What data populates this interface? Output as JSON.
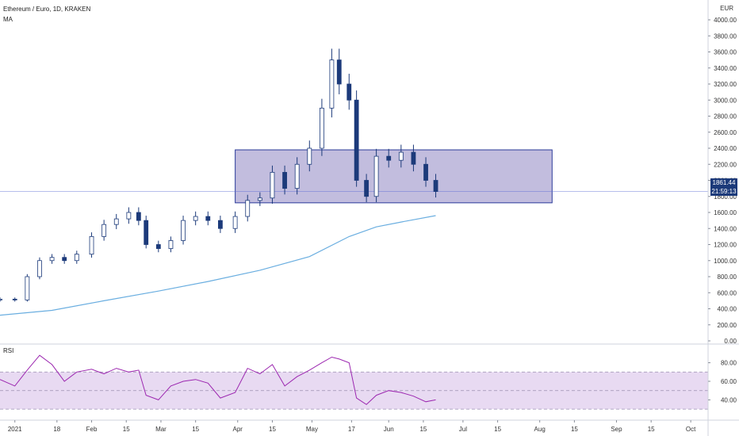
{
  "header": {
    "symbol": "Ethereum / Euro, 1D, KRAKEN",
    "indicator": "MA",
    "rsi_label": "RSI",
    "currency": "EUR"
  },
  "price_box": {
    "price": "1861.44",
    "countdown": "21:59:13"
  },
  "colors": {
    "up_candle": "#ffffff",
    "down_candle": "#1c3a7a",
    "candle_outline": "#1c3a7a",
    "ma_line": "#6aaee0",
    "zone_fill": "#b7b1d8",
    "zone_border": "#2b3b9a",
    "rsi_line": "#9c27b0",
    "rsi_band": "#e6d6f1",
    "price_tag": "#1c3a7a"
  },
  "chart_data": [
    {
      "type": "line",
      "title": "Ethereum / Euro, 1D, KRAKEN",
      "xlabel": "",
      "ylabel": "EUR",
      "x_ticks": [
        "2021",
        "18",
        "Feb",
        "15",
        "Mar",
        "15",
        "Apr",
        "15",
        "May",
        "17",
        "Jun",
        "15",
        "Jul",
        "15",
        "Aug",
        "15",
        "Sep",
        "15",
        "Oct"
      ],
      "y_ticks": [
        "0.00",
        "200.00",
        "400.00",
        "600.00",
        "800.00",
        "1000.00",
        "1200.00",
        "1400.00",
        "1600.00",
        "1800.00",
        "2000.00",
        "2200.00",
        "2400.00",
        "2600.00",
        "2800.00",
        "3000.00",
        "3200.00",
        "3400.00",
        "3600.00",
        "3800.00",
        "4000.00"
      ],
      "ylim": [
        0,
        4000
      ],
      "series": [
        {
          "name": "",
          "kind": "close",
          "x": [
            "2020-12-26",
            "2021-01-01",
            "2021-01-06",
            "2021-01-11",
            "2021-01-16",
            "2021-01-21",
            "2021-01-26",
            "2021-02-01",
            "2021-02-06",
            "2021-02-11",
            "2021-02-16",
            "2021-02-20",
            "2021-02-23",
            "2021-02-28",
            "2021-03-05",
            "2021-03-10",
            "2021-03-15",
            "2021-03-20",
            "2021-03-25",
            "2021-03-31",
            "2021-04-05",
            "2021-04-10",
            "2021-04-15",
            "2021-04-20",
            "2021-04-25",
            "2021-04-30",
            "2021-05-05",
            "2021-05-09",
            "2021-05-12",
            "2021-05-16",
            "2021-05-19",
            "2021-05-23",
            "2021-05-27",
            "2021-06-01",
            "2021-06-06",
            "2021-06-11",
            "2021-06-16",
            "2021-06-20"
          ],
          "y": [
            520,
            510,
            800,
            1000,
            1040,
            1000,
            1080,
            1300,
            1450,
            1520,
            1600,
            1500,
            1200,
            1150,
            1250,
            1500,
            1550,
            1500,
            1400,
            1550,
            1750,
            1780,
            2100,
            1900,
            2200,
            2400,
            2900,
            3500,
            3200,
            3000,
            2000,
            1800,
            2300,
            2250,
            2350,
            2200,
            2000,
            1861
          ]
        },
        {
          "name": "",
          "kind": "moving_average",
          "x": [
            "2020-12-26",
            "2021-01-16",
            "2021-02-06",
            "2021-02-28",
            "2021-03-20",
            "2021-04-10",
            "2021-04-30",
            "2021-05-16",
            "2021-05-27",
            "2021-06-06",
            "2021-06-20"
          ],
          "y": [
            320,
            380,
            500,
            620,
            740,
            880,
            1050,
            1300,
            1420,
            1480,
            1560
          ]
        }
      ],
      "annotations": [
        {
          "type": "zone",
          "x": [
            "2021-03-31",
            "2021-08-06"
          ],
          "y": [
            1720,
            2380
          ]
        },
        {
          "type": "horizontal_line",
          "y": 1861.44
        }
      ],
      "grid": false,
      "legend": "none"
    },
    {
      "type": "line",
      "title": "RSI",
      "x_ticks": [
        "2021",
        "18",
        "Feb",
        "15",
        "Mar",
        "15",
        "Apr",
        "15",
        "May",
        "17",
        "Jun",
        "15",
        "Jul",
        "15",
        "Aug",
        "15",
        "Sep",
        "15",
        "Oct"
      ],
      "y_ticks": [
        "40.00",
        "60.00",
        "80.00"
      ],
      "ylim": [
        25,
        95
      ],
      "band": [
        30,
        70
      ],
      "midline": 50,
      "series": [
        {
          "name": "",
          "x": [
            "2020-12-26",
            "2021-01-01",
            "2021-01-06",
            "2021-01-11",
            "2021-01-16",
            "2021-01-21",
            "2021-01-26",
            "2021-02-01",
            "2021-02-06",
            "2021-02-11",
            "2021-02-16",
            "2021-02-20",
            "2021-02-23",
            "2021-02-28",
            "2021-03-05",
            "2021-03-10",
            "2021-03-15",
            "2021-03-20",
            "2021-03-25",
            "2021-03-31",
            "2021-04-05",
            "2021-04-10",
            "2021-04-15",
            "2021-04-20",
            "2021-04-25",
            "2021-04-30",
            "2021-05-05",
            "2021-05-09",
            "2021-05-12",
            "2021-05-16",
            "2021-05-19",
            "2021-05-23",
            "2021-05-27",
            "2021-06-01",
            "2021-06-06",
            "2021-06-11",
            "2021-06-16",
            "2021-06-20"
          ],
          "y": [
            62,
            55,
            72,
            88,
            78,
            60,
            70,
            73,
            68,
            74,
            70,
            72,
            45,
            40,
            55,
            60,
            62,
            58,
            42,
            48,
            74,
            68,
            78,
            55,
            65,
            72,
            80,
            86,
            84,
            80,
            42,
            35,
            45,
            50,
            48,
            44,
            38,
            40
          ]
        }
      ],
      "grid": false,
      "legend": "none"
    }
  ]
}
